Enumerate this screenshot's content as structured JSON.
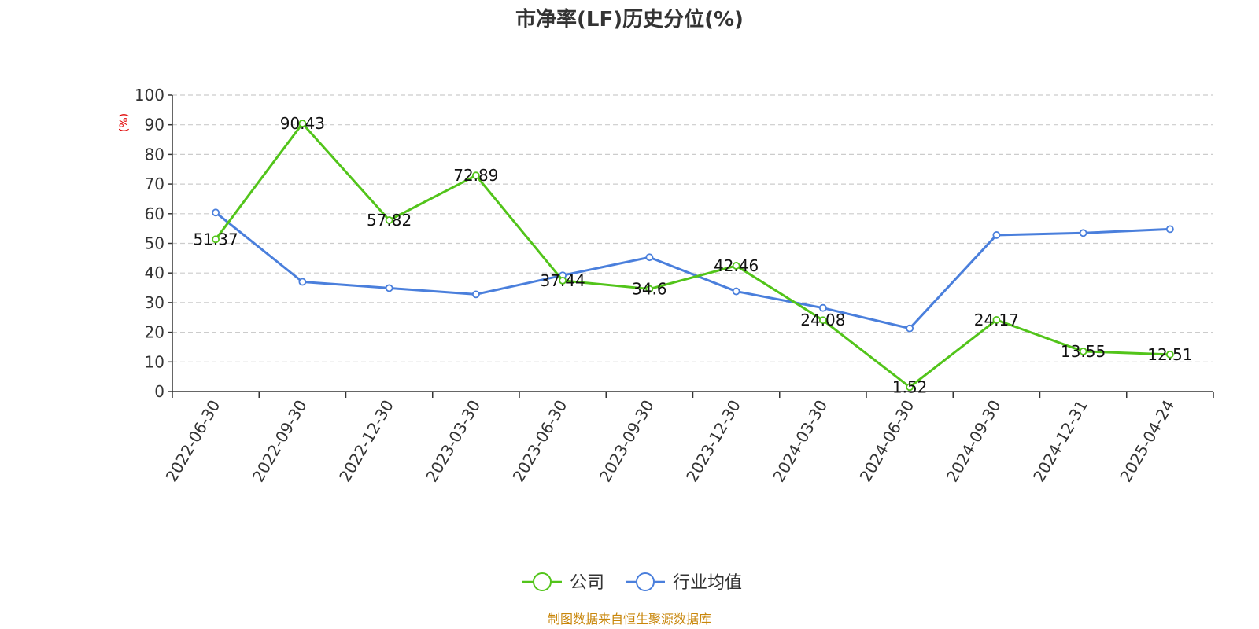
{
  "chart_data": {
    "type": "line",
    "title": "市净率(LF)历史分位(%)",
    "y_unit": "(%)",
    "ylim": [
      0,
      100
    ],
    "y_ticks": [
      0,
      10,
      20,
      30,
      40,
      50,
      60,
      70,
      80,
      90,
      100
    ],
    "grid": true,
    "legend_position": "bottom-center",
    "categories": [
      "2022-06-30",
      "2022-09-30",
      "2022-12-30",
      "2023-03-30",
      "2023-06-30",
      "2023-09-30",
      "2023-12-30",
      "2024-03-30",
      "2024-06-30",
      "2024-09-30",
      "2024-12-31",
      "2025-04-24"
    ],
    "series": [
      {
        "name": "公司",
        "color": "#52c41a",
        "values": [
          51.37,
          90.43,
          57.82,
          72.89,
          37.44,
          34.6,
          42.46,
          24.08,
          1.52,
          24.17,
          13.55,
          12.51
        ],
        "labels": [
          "51.37",
          "90.43",
          "57.82",
          "72.89",
          "37.44",
          "34.6",
          "42.46",
          "24.08",
          "1.52",
          "24.17",
          "13.55",
          "12.51"
        ],
        "show_labels": true
      },
      {
        "name": "行业均值",
        "color": "#4a7fdc",
        "values": [
          60.4,
          37.0,
          34.9,
          32.8,
          39.2,
          45.3,
          33.8,
          28.2,
          21.3,
          52.8,
          53.5,
          54.8
        ],
        "show_labels": false
      }
    ],
    "source": "制图数据来自恒生聚源数据库",
    "source_color": "#c8860a",
    "unit_color": "#e00000"
  }
}
